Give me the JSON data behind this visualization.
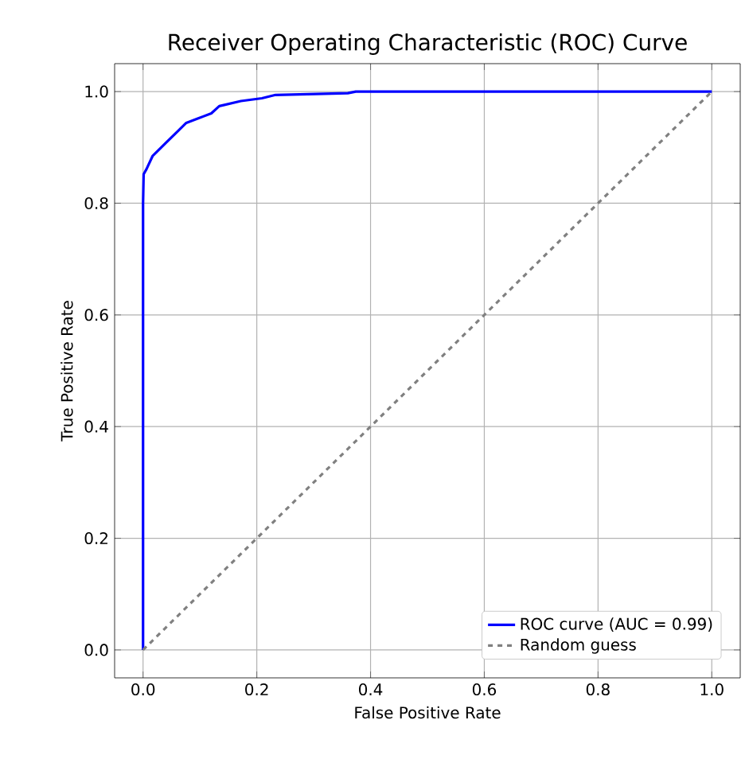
{
  "chart_data": {
    "type": "line",
    "title": "Receiver Operating Characteristic (ROC) Curve",
    "xlabel": "False Positive Rate",
    "ylabel": "True Positive Rate",
    "xlim": [
      -0.05,
      1.05
    ],
    "ylim": [
      -0.05,
      1.05
    ],
    "xticks": [
      {
        "value": 0,
        "label": "0.0"
      },
      {
        "value": 0.2,
        "label": "0.2"
      },
      {
        "value": 0.4,
        "label": "0.4"
      },
      {
        "value": 0.6,
        "label": "0.6"
      },
      {
        "value": 0.8,
        "label": "0.8"
      },
      {
        "value": 1,
        "label": "1.0"
      }
    ],
    "yticks": [
      {
        "value": 0,
        "label": "0.0"
      },
      {
        "value": 0.2,
        "label": "0.2"
      },
      {
        "value": 0.4,
        "label": "0.4"
      },
      {
        "value": 0.6,
        "label": "0.6"
      },
      {
        "value": 0.8,
        "label": "0.8"
      },
      {
        "value": 1,
        "label": "1.0"
      }
    ],
    "grid": true,
    "legend": "bottom right",
    "series": [
      {
        "name": "ROC curve (AUC = 0.99)",
        "color": "#0000ff",
        "line_style": "solid",
        "x": [
          0,
          0,
          0.001,
          0.006,
          0.017,
          0.04,
          0.059,
          0.076,
          0.097,
          0.12,
          0.134,
          0.172,
          0.209,
          0.233,
          0.36,
          0.374,
          1
        ],
        "values": [
          0,
          0.8,
          0.852,
          0.861,
          0.885,
          0.908,
          0.927,
          0.944,
          0.952,
          0.961,
          0.974,
          0.983,
          0.988,
          0.994,
          0.997,
          1,
          1
        ]
      },
      {
        "name": "Random guess",
        "color": "#808080",
        "line_style": "dashed",
        "x": [
          0,
          1
        ],
        "values": [
          0,
          1
        ]
      }
    ]
  }
}
